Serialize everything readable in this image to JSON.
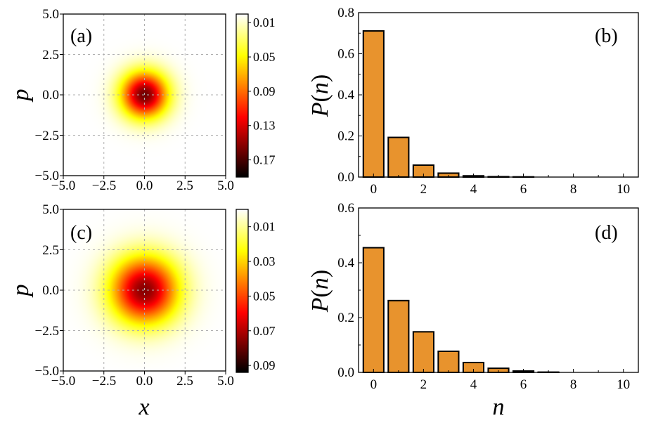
{
  "chart_data": [
    {
      "panel": "(a)",
      "type": "heatmap",
      "xlabel": "",
      "ylabel": "p",
      "xlim": [
        -5,
        5
      ],
      "ylim": [
        -5,
        5
      ],
      "xticks": [
        "−5.0",
        "−2.5",
        "0.0",
        "2.5",
        "5.0"
      ],
      "yticks": [
        "5.0",
        "2.5",
        "0.0",
        "−2.5",
        "−5.0"
      ],
      "grid": true,
      "colormap": "hot_r",
      "sigma": 1.0,
      "cmin": 0.0,
      "cmax": 0.19,
      "colorbar_ticks": [
        "0.01",
        "0.05",
        "0.09",
        "0.13",
        "0.17"
      ],
      "colorbar_values": [
        0.01,
        0.05,
        0.09,
        0.13,
        0.17
      ]
    },
    {
      "panel": "(b)",
      "type": "bar",
      "xlabel": "",
      "ylabel": "P(n)",
      "ylabel_parts": {
        "symbol": "P",
        "open": "(",
        "var": "n",
        "close": ")"
      },
      "categories": [
        0,
        1,
        2,
        3,
        4,
        5,
        6,
        7,
        8,
        9,
        10
      ],
      "values": [
        0.711,
        0.193,
        0.058,
        0.019,
        0.006,
        0.002,
        0.001,
        0.0,
        0.0,
        0.0,
        0.0
      ],
      "ylim": [
        0.0,
        0.8
      ],
      "xlim": [
        -0.6,
        10.6
      ],
      "xticks": [
        0,
        2,
        4,
        6,
        8,
        10
      ],
      "yticks": [
        "0.0",
        "0.2",
        "0.4",
        "0.6",
        "0.8"
      ],
      "ytick_values": [
        0,
        0.2,
        0.4,
        0.6,
        0.8
      ]
    },
    {
      "panel": "(c)",
      "type": "heatmap",
      "xlabel": "x",
      "ylabel": "p",
      "xlim": [
        -5,
        5
      ],
      "ylim": [
        -5,
        5
      ],
      "xticks": [
        "−5.0",
        "−2.5",
        "0.0",
        "2.5",
        "5.0"
      ],
      "yticks": [
        "5.0",
        "2.5",
        "0.0",
        "−2.5",
        "−5.0"
      ],
      "grid": true,
      "colormap": "hot_r",
      "sigma": 1.45,
      "cmin": 0.0,
      "cmax": 0.094,
      "colorbar_ticks": [
        "0.01",
        "0.03",
        "0.05",
        "0.07",
        "0.09"
      ],
      "colorbar_values": [
        0.01,
        0.03,
        0.05,
        0.07,
        0.09
      ]
    },
    {
      "panel": "(d)",
      "type": "bar",
      "xlabel": "n",
      "ylabel": "P(n)",
      "ylabel_parts": {
        "symbol": "P",
        "open": "(",
        "var": "n",
        "close": ")"
      },
      "categories": [
        0,
        1,
        2,
        3,
        4,
        5,
        6,
        7,
        8,
        9,
        10
      ],
      "values": [
        0.455,
        0.262,
        0.148,
        0.077,
        0.036,
        0.015,
        0.005,
        0.001,
        0.0,
        0.0,
        0.0
      ],
      "ylim": [
        0.0,
        0.6
      ],
      "xlim": [
        -0.6,
        10.6
      ],
      "xticks": [
        0,
        2,
        4,
        6,
        8,
        10
      ],
      "yticks": [
        "0.0",
        "0.2",
        "0.4",
        "0.6"
      ],
      "ytick_values": [
        0,
        0.2,
        0.4,
        0.6
      ]
    }
  ]
}
